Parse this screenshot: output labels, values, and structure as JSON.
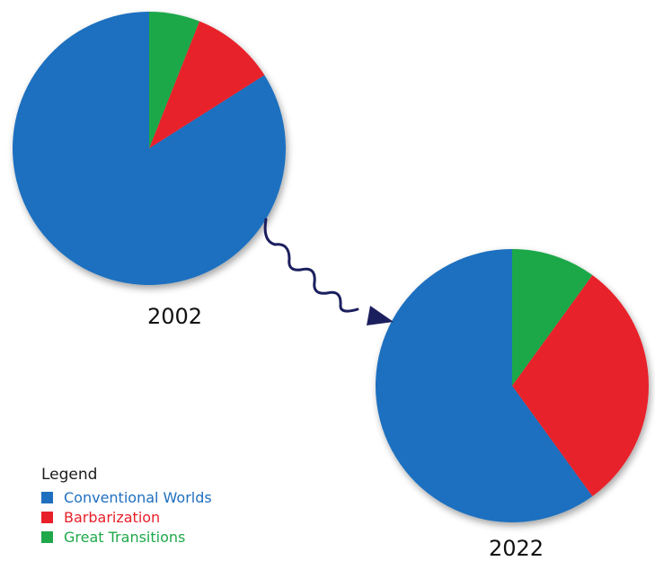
{
  "chart_data": [
    {
      "type": "pie",
      "title": "2002",
      "categories": [
        "Conventional Worlds",
        "Barbarization",
        "Great Transitions"
      ],
      "values": [
        84,
        10,
        6
      ],
      "colors": [
        "#1f6fbf",
        "#e8202a",
        "#1fa84a"
      ]
    },
    {
      "type": "pie",
      "title": "2022",
      "categories": [
        "Conventional Worlds",
        "Barbarization",
        "Great Transitions"
      ],
      "values": [
        60,
        30,
        10
      ],
      "colors": [
        "#1f6fbf",
        "#e8202a",
        "#1fa84a"
      ]
    }
  ],
  "legend": {
    "title": "Legend",
    "placement": "bottom-left",
    "items": [
      {
        "label": "Conventional Worlds",
        "color": "#1f6fbf"
      },
      {
        "label": "Barbarization",
        "color": "#e8202a"
      },
      {
        "label": "Great Transitions",
        "color": "#1fa84a"
      }
    ]
  },
  "arrow": {
    "color": "#1c1f5e",
    "icon": "wavy-arrow-icon"
  }
}
